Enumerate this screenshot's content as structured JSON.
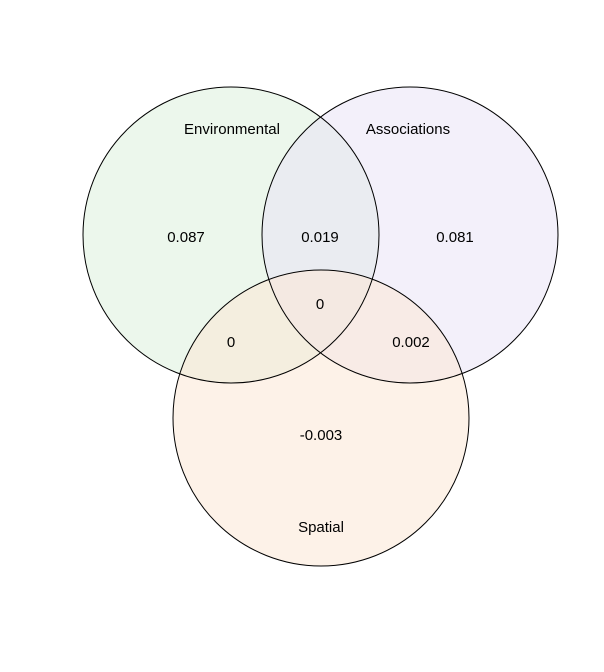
{
  "sets": {
    "environmental": {
      "label": "Environmental",
      "color": "#DDF0DD"
    },
    "associations": {
      "label": "Associations",
      "color": "#E9E3F5"
    },
    "spatial": {
      "label": "Spatial",
      "color": "#FCE8D6"
    }
  },
  "regions": {
    "environmental_only": "0.087",
    "associations_only": "0.081",
    "spatial_only": "-0.003",
    "environmental_associations": "0.019",
    "environmental_spatial": "0",
    "associations_spatial": "0.002",
    "all_three": "0"
  }
}
